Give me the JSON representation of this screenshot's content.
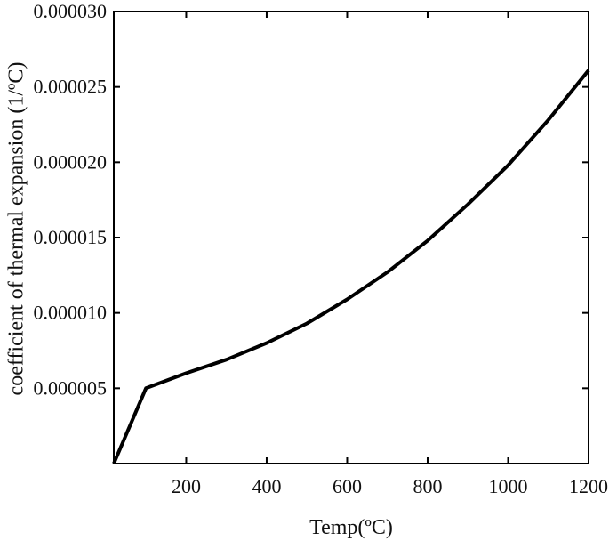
{
  "chart_data": {
    "type": "line",
    "title": "",
    "xlabel": "Temp(ºC)",
    "ylabel": "coefficient of thermal expansion (1/ºC)",
    "xlim": [
      20,
      1200
    ],
    "ylim": [
      0,
      3e-05
    ],
    "x_ticks": [
      "200",
      "400",
      "600",
      "800",
      "1000",
      "1200"
    ],
    "x_tick_values": [
      200,
      400,
      600,
      800,
      1000,
      1200
    ],
    "y_ticks": [
      "0.000005",
      "0.000010",
      "0.000015",
      "0.000020",
      "0.000025",
      "0.000030"
    ],
    "y_tick_values": [
      5e-06,
      1e-05,
      1.5e-05,
      2e-05,
      2.5e-05,
      3e-05
    ],
    "grid": false,
    "series": [
      {
        "x": [
          20,
          100,
          200,
          300,
          400,
          500,
          600,
          700,
          800,
          900,
          1000,
          1100,
          1200
        ],
        "values": [
          0.0,
          5e-06,
          6e-06,
          6.9e-06,
          8e-06,
          9.3e-06,
          1.09e-05,
          1.27e-05,
          1.48e-05,
          1.72e-05,
          1.98e-05,
          2.28e-05,
          2.61e-05
        ],
        "color": "#000000"
      }
    ]
  }
}
